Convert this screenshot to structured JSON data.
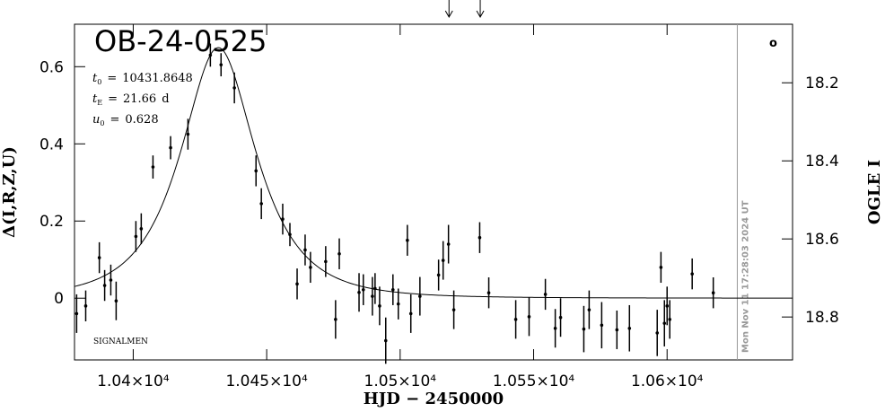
{
  "chart_data": {
    "type": "scatter",
    "title": "OB-24-0525",
    "x_label": "HJD − 2450000",
    "y_label": "Δ(I,R,Z,U)",
    "y2_label": "OGLE I",
    "xlim": [
      10378,
      10647
    ],
    "ylim": [
      -0.16,
      0.71
    ],
    "y2lim": [
      18.91,
      18.05
    ],
    "xticks": [
      {
        "value": 10400,
        "label": "1.04×10⁴"
      },
      {
        "value": 10450,
        "label": "1.045×10⁴"
      },
      {
        "value": 10500,
        "label": "1.05×10⁴"
      },
      {
        "value": 10550,
        "label": "1.055×10⁴"
      },
      {
        "value": 10600,
        "label": "1.06×10⁴"
      }
    ],
    "yticks": [
      0,
      0.2,
      0.4,
      0.6
    ],
    "y2ticks": [
      18.2,
      18.4,
      18.6,
      18.8
    ],
    "parameters": [
      {
        "name": "t",
        "sub": "0",
        "eq": "=",
        "value": 10431.8648
      },
      {
        "name": "t",
        "sub": "E",
        "eq": "=",
        "value": 21.66,
        "unit": "d"
      },
      {
        "name": "u",
        "sub": "0",
        "eq": "=",
        "value": 0.628
      }
    ],
    "source_label": "SIGNALMEN",
    "timestamp": "Mon Nov 11 17:28:03 2024 UT",
    "timestamp_x": 10626.3,
    "corner_mark": "o",
    "arrows_x": [
      10518.3,
      10530
    ],
    "series": [
      {
        "color": "#000000",
        "x": [
          10378.8,
          10382.2,
          10387.3,
          10389.3,
          10391.6,
          10393.6,
          10401,
          10403,
          10407.4,
          10414,
          10420.5,
          10428.9,
          10432.9,
          10437.9,
          10446,
          10448,
          10456,
          10458.7,
          10461.4,
          10464.4,
          10466.4,
          10472.1,
          10475.8,
          10477.2,
          10484.6,
          10486.2,
          10489.6,
          10490.6,
          10492.3,
          10494.6,
          10497.3,
          10499.3,
          10502.7,
          10504,
          10507.4,
          10514.4,
          10516.1,
          10518.1,
          10520.1,
          10529.8,
          10533.2,
          10543.3,
          10548.3,
          10554.4,
          10558.1,
          10560.1,
          10568.8,
          10570.8,
          10575.5,
          10581.2,
          10585.9,
          10596.3,
          10597.7,
          10599,
          10600,
          10601,
          10609.4,
          10617.3
        ],
        "values": [
          -0.04,
          -0.02,
          0.105,
          0.033,
          0.047,
          -0.007,
          0.16,
          0.18,
          0.34,
          0.39,
          0.425,
          0.63,
          0.605,
          0.545,
          0.33,
          0.245,
          0.205,
          0.165,
          0.037,
          0.125,
          0.08,
          0.095,
          -0.055,
          0.115,
          0.015,
          0.022,
          0.005,
          0.025,
          -0.02,
          -0.11,
          0.022,
          -0.015,
          0.15,
          -0.04,
          0.005,
          0.06,
          0.098,
          0.14,
          -0.03,
          0.157,
          0.014,
          -0.055,
          -0.048,
          0.01,
          -0.078,
          -0.05,
          -0.08,
          -0.03,
          -0.07,
          -0.082,
          -0.078,
          -0.09,
          0.08,
          -0.065,
          -0.02,
          -0.055,
          0.063,
          0.014
        ],
        "errors": [
          0.05,
          0.04,
          0.04,
          0.04,
          0.04,
          0.05,
          0.04,
          0.04,
          0.03,
          0.03,
          0.04,
          0.03,
          0.03,
          0.04,
          0.04,
          0.04,
          0.04,
          0.03,
          0.04,
          0.04,
          0.04,
          0.04,
          0.05,
          0.04,
          0.05,
          0.04,
          0.05,
          0.04,
          0.05,
          0.06,
          0.04,
          0.04,
          0.04,
          0.05,
          0.05,
          0.04,
          0.05,
          0.05,
          0.05,
          0.04,
          0.04,
          0.05,
          0.05,
          0.04,
          0.05,
          0.05,
          0.06,
          0.05,
          0.06,
          0.05,
          0.06,
          0.06,
          0.04,
          0.06,
          0.05,
          0.05,
          0.04,
          0.04
        ]
      }
    ]
  }
}
